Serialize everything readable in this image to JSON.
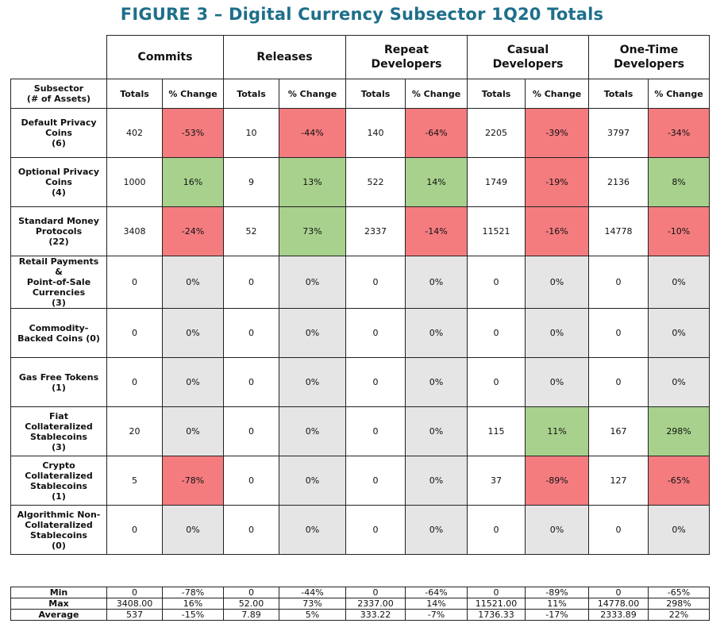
{
  "title": "FIGURE 3 – Digital Currency Subsector 1Q20 Totals",
  "groups": [
    "Commits",
    "Releases",
    "Repeat\nDevelopers",
    "Casual\nDevelopers",
    "One-Time\nDevelopers"
  ],
  "row_header": "Subsector\n(# of Assets)",
  "sub_headers": {
    "totals": "Totals",
    "change": "% Change"
  },
  "colors": {
    "red": "#f47c7f",
    "green": "#a8d18d",
    "gray": "#e5e5e5",
    "title": "#1e6f8a"
  },
  "rows": [
    {
      "label": "Default Privacy\nCoins\n(6)",
      "cells": [
        [
          "402",
          "-53%",
          "red"
        ],
        [
          "10",
          "-44%",
          "red"
        ],
        [
          "140",
          "-64%",
          "red"
        ],
        [
          "2205",
          "-39%",
          "red"
        ],
        [
          "3797",
          "-34%",
          "red"
        ]
      ]
    },
    {
      "label": "Optional Privacy\nCoins\n(4)",
      "cells": [
        [
          "1000",
          "16%",
          "green"
        ],
        [
          "9",
          "13%",
          "green"
        ],
        [
          "522",
          "14%",
          "green"
        ],
        [
          "1749",
          "-19%",
          "red"
        ],
        [
          "2136",
          "8%",
          "green"
        ]
      ]
    },
    {
      "label": "Standard Money\nProtocols\n(22)",
      "cells": [
        [
          "3408",
          "-24%",
          "red"
        ],
        [
          "52",
          "73%",
          "green"
        ],
        [
          "2337",
          "-14%",
          "red"
        ],
        [
          "11521",
          "-16%",
          "red"
        ],
        [
          "14778",
          "-10%",
          "red"
        ]
      ]
    },
    {
      "label": "Retail Payments\n&\nPoint-of-Sale\nCurrencies\n(3)",
      "cells": [
        [
          "0",
          "0%",
          "gray"
        ],
        [
          "0",
          "0%",
          "gray"
        ],
        [
          "0",
          "0%",
          "gray"
        ],
        [
          "0",
          "0%",
          "gray"
        ],
        [
          "0",
          "0%",
          "gray"
        ]
      ]
    },
    {
      "label": "Commodity-\nBacked Coins (0)",
      "cells": [
        [
          "0",
          "0%",
          "gray"
        ],
        [
          "0",
          "0%",
          "gray"
        ],
        [
          "0",
          "0%",
          "gray"
        ],
        [
          "0",
          "0%",
          "gray"
        ],
        [
          "0",
          "0%",
          "gray"
        ]
      ]
    },
    {
      "label": "Gas Free Tokens\n(1)",
      "cells": [
        [
          "0",
          "0%",
          "gray"
        ],
        [
          "0",
          "0%",
          "gray"
        ],
        [
          "0",
          "0%",
          "gray"
        ],
        [
          "0",
          "0%",
          "gray"
        ],
        [
          "0",
          "0%",
          "gray"
        ]
      ]
    },
    {
      "label": "Fiat\nCollateralized\nStablecoins\n(3)",
      "cells": [
        [
          "20",
          "0%",
          "gray"
        ],
        [
          "0",
          "0%",
          "gray"
        ],
        [
          "0",
          "0%",
          "gray"
        ],
        [
          "115",
          "11%",
          "green"
        ],
        [
          "167",
          "298%",
          "green"
        ]
      ]
    },
    {
      "label": "Crypto\nCollateralized\nStablecoins\n(1)",
      "cells": [
        [
          "5",
          "-78%",
          "red"
        ],
        [
          "0",
          "0%",
          "gray"
        ],
        [
          "0",
          "0%",
          "gray"
        ],
        [
          "37",
          "-89%",
          "red"
        ],
        [
          "127",
          "-65%",
          "red"
        ]
      ]
    },
    {
      "label": "Algorithmic Non-\nCollateralized\nStablecoins\n(0)",
      "cells": [
        [
          "0",
          "0%",
          "gray"
        ],
        [
          "0",
          "0%",
          "gray"
        ],
        [
          "0",
          "0%",
          "gray"
        ],
        [
          "0",
          "0%",
          "gray"
        ],
        [
          "0",
          "0%",
          "gray"
        ]
      ]
    }
  ],
  "summary": [
    {
      "label": "Min",
      "values": [
        "0",
        "-78%",
        "0",
        "-44%",
        "0",
        "-64%",
        "0",
        "-89%",
        "0",
        "-65%"
      ]
    },
    {
      "label": "Max",
      "values": [
        "3408.00",
        "16%",
        "52.00",
        "73%",
        "2337.00",
        "14%",
        "11521.00",
        "11%",
        "14778.00",
        "298%"
      ]
    },
    {
      "label": "Average",
      "values": [
        "537",
        "-15%",
        "7.89",
        "5%",
        "333.22",
        "-7%",
        "1736.33",
        "-17%",
        "2333.89",
        "22%"
      ]
    }
  ]
}
